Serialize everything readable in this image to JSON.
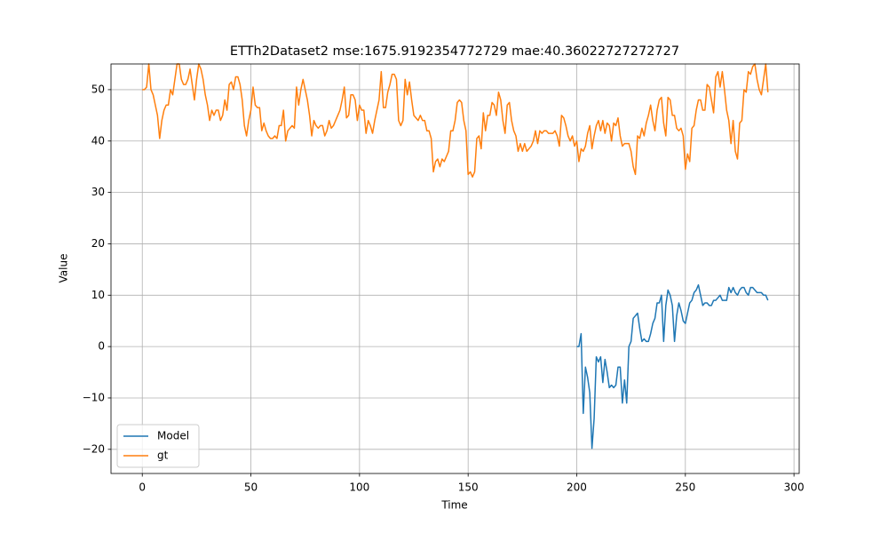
{
  "chart_data": {
    "type": "line",
    "title": "ETTh2Dataset2 mse:1675.9192354772729 mae:40.36022727272727",
    "xlabel": "Time",
    "ylabel": "Value",
    "xlim": [
      -14.4,
      302.4
    ],
    "ylim": [
      -24.7,
      55.0
    ],
    "xticks": [
      0,
      50,
      100,
      150,
      200,
      250,
      300
    ],
    "yticks": [
      {
        "value": -20,
        "label": "−20"
      },
      {
        "value": -10,
        "label": "−10"
      },
      0,
      10,
      20,
      30,
      40,
      50
    ],
    "grid": true,
    "legend": "lower left",
    "series": [
      {
        "name": "Model",
        "color": "#1f77b4",
        "x": [
          200,
          201,
          202,
          203,
          204,
          205,
          206,
          207,
          208,
          209,
          210,
          211,
          212,
          213,
          214,
          215,
          216,
          217,
          218,
          219,
          220,
          221,
          222,
          223,
          224,
          225,
          226,
          227,
          228,
          229,
          230,
          231,
          232,
          233,
          234,
          235,
          236,
          237,
          238,
          239,
          240,
          241,
          242,
          243,
          244,
          245,
          246,
          247,
          248,
          249,
          250,
          251,
          252,
          253,
          254,
          255,
          256,
          257,
          258,
          259,
          260,
          261,
          262,
          263,
          264,
          265,
          266,
          267,
          268,
          269,
          270,
          271,
          272,
          273,
          274,
          275,
          276,
          277,
          278,
          279,
          280,
          281,
          282,
          283,
          284,
          285,
          286,
          287,
          288
        ],
        "values": [
          0,
          0,
          2.5,
          -13,
          -4,
          -6,
          -9,
          -19.8,
          -14,
          -2,
          -3,
          -2,
          -7,
          -2.5,
          -5,
          -8,
          -7.5,
          -8,
          -7.5,
          -4,
          -4,
          -11,
          -6.5,
          -11,
          0,
          1,
          5.5,
          6,
          6.5,
          3.5,
          1,
          1.5,
          1,
          1,
          2.5,
          4.5,
          5.5,
          8.5,
          8.5,
          10,
          1,
          8,
          11,
          10,
          8,
          1,
          6,
          8.5,
          7,
          5,
          4.5,
          6.5,
          8.5,
          9,
          10.5,
          11,
          12,
          10,
          8,
          8.5,
          8.5,
          8,
          8,
          9,
          9,
          9.5,
          10,
          9,
          9,
          9,
          11.5,
          10.5,
          11.5,
          10.5,
          10,
          11,
          11.5,
          11.5,
          10.5,
          10,
          11.5,
          11.5,
          11,
          10.5,
          10.5,
          10.5,
          10,
          10,
          9
        ]
      },
      {
        "name": "gt",
        "color": "#ff7f0e",
        "x": [
          0,
          1,
          2,
          3,
          4,
          5,
          6,
          7,
          8,
          9,
          10,
          11,
          12,
          13,
          14,
          15,
          16,
          17,
          18,
          19,
          20,
          21,
          22,
          23,
          24,
          25,
          26,
          27,
          28,
          29,
          30,
          31,
          32,
          33,
          34,
          35,
          36,
          37,
          38,
          39,
          40,
          41,
          42,
          43,
          44,
          45,
          46,
          47,
          48,
          49,
          50,
          51,
          52,
          53,
          54,
          55,
          56,
          57,
          58,
          59,
          60,
          61,
          62,
          63,
          64,
          65,
          66,
          67,
          68,
          69,
          70,
          71,
          72,
          73,
          74,
          75,
          76,
          77,
          78,
          79,
          80,
          81,
          82,
          83,
          84,
          85,
          86,
          87,
          88,
          89,
          90,
          91,
          92,
          93,
          94,
          95,
          96,
          97,
          98,
          99,
          100,
          101,
          102,
          103,
          104,
          105,
          106,
          107,
          108,
          109,
          110,
          111,
          112,
          113,
          114,
          115,
          116,
          117,
          118,
          119,
          120,
          121,
          122,
          123,
          124,
          125,
          126,
          127,
          128,
          129,
          130,
          131,
          132,
          133,
          134,
          135,
          136,
          137,
          138,
          139,
          140,
          141,
          142,
          143,
          144,
          145,
          146,
          147,
          148,
          149,
          150,
          151,
          152,
          153,
          154,
          155,
          156,
          157,
          158,
          159,
          160,
          161,
          162,
          163,
          164,
          165,
          166,
          167,
          168,
          169,
          170,
          171,
          172,
          173,
          174,
          175,
          176,
          177,
          178,
          179,
          180,
          181,
          182,
          183,
          184,
          185,
          186,
          187,
          188,
          189,
          190,
          191,
          192,
          193,
          194,
          195,
          196,
          197,
          198,
          199,
          200,
          201,
          202,
          203,
          204,
          205,
          206,
          207,
          208,
          209,
          210,
          211,
          212,
          213,
          214,
          215,
          216,
          217,
          218,
          219,
          220,
          221,
          222,
          223,
          224,
          225,
          226,
          227,
          228,
          229,
          230,
          231,
          232,
          233,
          234,
          235,
          236,
          237,
          238,
          239,
          240,
          241,
          242,
          243,
          244,
          245,
          246,
          247,
          248,
          249,
          250,
          251,
          252,
          253,
          254,
          255,
          256,
          257,
          258,
          259,
          260,
          261,
          262,
          263,
          264,
          265,
          266,
          267,
          268,
          269,
          270,
          271,
          272,
          273,
          274,
          275,
          276,
          277,
          278,
          279,
          280,
          281,
          282,
          283,
          284,
          285,
          286,
          287,
          288
        ],
        "values": [
          50,
          50,
          50.5,
          55,
          50,
          49,
          47,
          45,
          40.5,
          44,
          46,
          47,
          47,
          50,
          49,
          52,
          55,
          55,
          52,
          51,
          51,
          52,
          54,
          51,
          48,
          52,
          55,
          54,
          52,
          49,
          47,
          44,
          46,
          45,
          46,
          46,
          44,
          45,
          48,
          46,
          51,
          51.5,
          50,
          52.5,
          52.5,
          51,
          48,
          43,
          41,
          44,
          46,
          50.5,
          47,
          46.5,
          46.5,
          42,
          43.5,
          42,
          41,
          40.5,
          40.5,
          41,
          40.5,
          43,
          43,
          46,
          40,
          42,
          42.5,
          43,
          42.5,
          50.5,
          47,
          50,
          52,
          50,
          48,
          45,
          41,
          44,
          43,
          42.5,
          43,
          43,
          41,
          42,
          44,
          42.5,
          43,
          44,
          45,
          46,
          48,
          50.5,
          44.5,
          45,
          49,
          49,
          48,
          44,
          47,
          46,
          46,
          41.5,
          44,
          43,
          41.5,
          44,
          46,
          48,
          53.5,
          46.5,
          46.5,
          49.5,
          51,
          53,
          53,
          52,
          44,
          43,
          44,
          52,
          49,
          51.5,
          48,
          45,
          44.5,
          44,
          45,
          44,
          44,
          42,
          42,
          40.5,
          34,
          36,
          36.5,
          35,
          36.5,
          36,
          37,
          38,
          42,
          42,
          44,
          47.5,
          48,
          47.5,
          44,
          42,
          33.5,
          34,
          33,
          34,
          40.5,
          41,
          38.5,
          45.5,
          42,
          45,
          45,
          47.5,
          47,
          45,
          49.5,
          48,
          44,
          41.5,
          47,
          47.5,
          44,
          42,
          41,
          38,
          39.5,
          38,
          39.5,
          38,
          38.5,
          39,
          40,
          42,
          39.5,
          42,
          41.5,
          42,
          42,
          41.5,
          41.5,
          41.5,
          42,
          41,
          39,
          45,
          44.5,
          43,
          41,
          40,
          41,
          39,
          40,
          36,
          38.5,
          38,
          39,
          41.5,
          43,
          38.5,
          41,
          43,
          44,
          42,
          44,
          41.5,
          43.5,
          43,
          40,
          43.5,
          43,
          44.5,
          41,
          39,
          39.5,
          39.5,
          39.5,
          38,
          35,
          33.5,
          41,
          40.5,
          42.5,
          41,
          43.5,
          45,
          47,
          44,
          42,
          46,
          48,
          48.5,
          43.5,
          41,
          48.5,
          48,
          45,
          45,
          42.5,
          42,
          42.5,
          41,
          34.5,
          37.5,
          36,
          42.5,
          43,
          46,
          48,
          48,
          46,
          46,
          51,
          50.5,
          48,
          45.5,
          52.5,
          53.5,
          50.5,
          53.5,
          50,
          46,
          44,
          39.5,
          44,
          38,
          36.5,
          43.5,
          44,
          50,
          49.5,
          53.5,
          53,
          54.5,
          55,
          52,
          50,
          49,
          52,
          55,
          49.5
        ]
      }
    ]
  }
}
